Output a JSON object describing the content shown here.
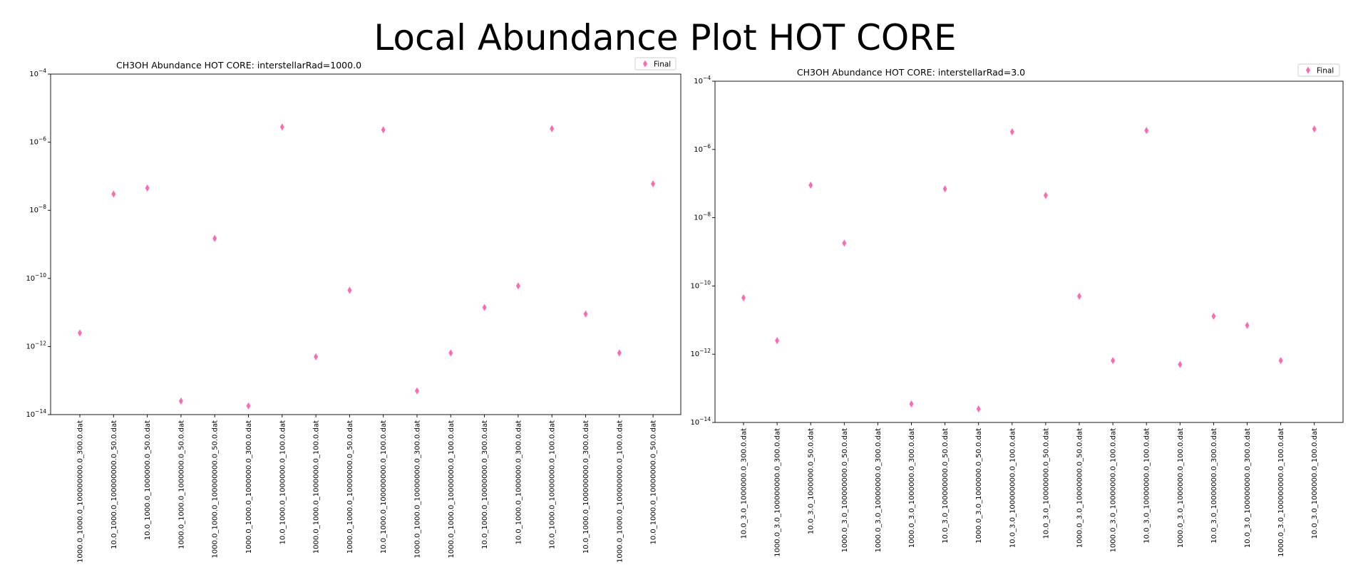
{
  "figure": {
    "title": "Local Abundance Plot HOT CORE"
  },
  "chart_data": [
    {
      "type": "scatter",
      "title": "CH3OH Abundance HOT CORE: interstellarRad=1000.0",
      "xlabel": "",
      "ylabel": "",
      "yscale": "log",
      "ylim": [
        1e-14,
        0.0001
      ],
      "yticks": [
        -14,
        -12,
        -10,
        -8,
        -6,
        -4
      ],
      "tick_base": "10",
      "legend": {
        "placement": "top-right",
        "entries": [
          "Final"
        ]
      },
      "marker": "thin_diamond",
      "color": "#ff69b4",
      "grid": false,
      "categories": [
        "1000.0_1000.0_100000000.0_300.0.dat",
        "10.0_1000.0_100000000.0_50.0.dat",
        "10.0_1000.0_1000000.0_50.0.dat",
        "1000.0_1000.0_1000000.0_50.0.dat",
        "1000.0_1000.0_100000000.0_50.0.dat",
        "1000.0_1000.0_1000000.0_300.0.dat",
        "10.0_1000.0_1000000.0_100.0.dat",
        "1000.0_1000.0_1000000.0_100.0.dat",
        "1000.0_1000.0_10000000.0_50.0.dat",
        "10.0_1000.0_100000000.0_100.0.dat",
        "1000.0_1000.0_10000000.0_300.0.dat",
        "1000.0_1000.0_10000000.0_100.0.dat",
        "10.0_1000.0_10000000.0_300.0.dat",
        "10.0_1000.0_1000000.0_300.0.dat",
        "10.0_1000.0_10000000.0_100.0.dat",
        "10.0_1000.0_100000000.0_300.0.dat",
        "1000.0_1000.0_100000000.0_100.0.dat",
        "10.0_1000.0_10000000.0_50.0.dat"
      ],
      "series": [
        {
          "name": "Final",
          "values": [
            2.5e-12,
            3e-08,
            4.5e-08,
            2.5e-14,
            1.5e-09,
            1.8e-14,
            2.8e-06,
            5e-13,
            4.5e-11,
            2.3e-06,
            5e-14,
            6.5e-13,
            1.4e-11,
            6e-11,
            2.5e-06,
            9e-12,
            6.5e-13,
            6e-08
          ]
        }
      ]
    },
    {
      "type": "scatter",
      "title": "CH3OH Abundance HOT CORE: interstellarRad=3.0",
      "xlabel": "",
      "ylabel": "",
      "yscale": "log",
      "ylim": [
        1e-14,
        0.0001
      ],
      "yticks": [
        -14,
        -12,
        -10,
        -8,
        -6,
        -4
      ],
      "tick_base": "10",
      "legend": {
        "placement": "top-right",
        "entries": [
          "Final"
        ]
      },
      "marker": "thin_diamond",
      "color": "#ff69b4",
      "grid": false,
      "categories": [
        "10.0_3.0_1000000.0_300.0.dat",
        "1000.0_3.0_100000000.0_300.0.dat",
        "10.0_3.0_1000000.0_50.0.dat",
        "1000.0_3.0_100000000.0_50.0.dat",
        "1000.0_3.0_10000000.0_300.0.dat",
        "1000.0_3.0_1000000.0_300.0.dat",
        "10.0_3.0_100000000.0_50.0.dat",
        "1000.0_3.0_1000000.0_50.0.dat",
        "10.0_3.0_100000000.0_100.0.dat",
        "10.0_3.0_10000000.0_50.0.dat",
        "1000.0_3.0_10000000.0_50.0.dat",
        "1000.0_3.0_10000000.0_100.0.dat",
        "10.0_3.0_10000000.0_100.0.dat",
        "1000.0_3.0_1000000.0_100.0.dat",
        "10.0_3.0_10000000.0_300.0.dat",
        "10.0_3.0_100000000.0_300.0.dat",
        "1000.0_3.0_100000000.0_100.0.dat",
        "10.0_3.0_1000000.0_100.0.dat"
      ],
      "series": [
        {
          "name": "Final",
          "values": [
            4.5e-11,
            2.5e-12,
            9e-08,
            1.8e-09,
            null,
            3.5e-14,
            7e-08,
            2.5e-14,
            3.3e-06,
            4.5e-08,
            5e-11,
            6.5e-13,
            3.6e-06,
            5e-13,
            1.3e-11,
            7e-12,
            6.5e-13,
            4e-06
          ]
        }
      ]
    }
  ]
}
